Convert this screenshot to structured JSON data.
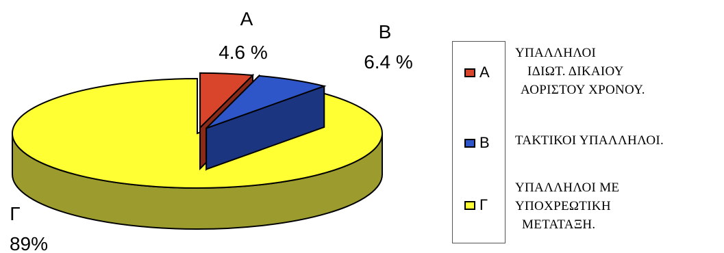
{
  "chart_data": {
    "type": "pie",
    "style": "3d-exploded",
    "categories": [
      "Α",
      "Β",
      "Γ"
    ],
    "values": [
      4.6,
      6.4,
      89
    ],
    "value_labels": [
      "4.6 %",
      "6.4 %",
      "89%"
    ],
    "colors": [
      "#d9452b",
      "#2e56c8",
      "#ffff33"
    ],
    "side_colors": [
      "#8a2a18",
      "#1b3580",
      "#9c9c2e"
    ],
    "legend_placement": "right",
    "legend": [
      {
        "key": "Α",
        "color": "#d9452b",
        "lines": [
          "ΥΠΑΛΛΗΛΟΙ",
          "ΙΔΙΩΤ. ΔΙΚΑΙΟΥ",
          "ΑΟΡΙΣΤΟΥ ΧΡΟΝΟΥ."
        ]
      },
      {
        "key": "Β",
        "color": "#2e56c8",
        "lines": [
          "ΤΑΚΤΙΚΟΙ ΥΠΑΛΛΗΛΟΙ."
        ]
      },
      {
        "key": "Γ",
        "color": "#ffff33",
        "lines": [
          "ΥΠΑΛΛΗΛΟΙ ΜΕ",
          "ΥΠΟΧΡΕΩΤΙΚΗ",
          "ΜΕΤΑΤΑΞΗ."
        ]
      }
    ]
  }
}
